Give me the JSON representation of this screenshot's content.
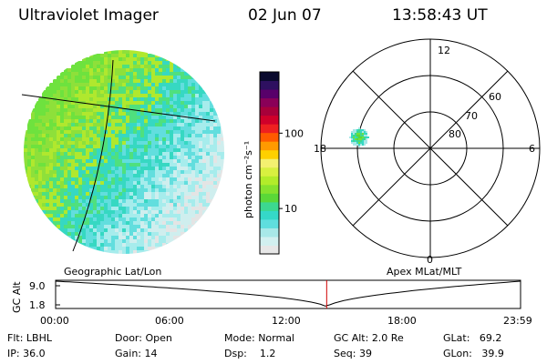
{
  "header": {
    "title": "Ultraviolet Imager",
    "date": "02 Jun 07",
    "time": "13:58:43 UT"
  },
  "colorbar": {
    "unit_label": "photon cm⁻²s⁻¹",
    "ticks": [
      {
        "label": "100",
        "value": 100
      },
      {
        "label": "10",
        "value": 10
      }
    ],
    "colors": [
      "#e7e7e7",
      "#d2f0f0",
      "#a8e8e8",
      "#5fdede",
      "#35d8c8",
      "#3cd890",
      "#5ad838",
      "#86e22e",
      "#b2ec2a",
      "#d8f040",
      "#f4f070",
      "#ffd000",
      "#ff9a00",
      "#ff5a00",
      "#ee2020",
      "#d0002a",
      "#a8003a",
      "#8a0058",
      "#58006a",
      "#2e1060",
      "#0a0a2e"
    ]
  },
  "left_panel": {
    "projection_label": "Geographic Lat/Lon",
    "image_colors": [
      "#6ee23e",
      "#8ee03a",
      "#b0e82e",
      "#4fe07e",
      "#36d8c2",
      "#62dede",
      "#a6ecec",
      "#cfeeee",
      "#e4e4e4"
    ]
  },
  "right_panel": {
    "projection_label": "Apex MLat/MLT",
    "mlt_labels": [
      "12",
      "18",
      "6",
      "0"
    ],
    "mlat_labels": [
      "60",
      "70",
      "80"
    ]
  },
  "timeline": {
    "ylabel": "GC Alt",
    "y_ticks": [
      "9.0",
      "1.8"
    ],
    "x_ticks": [
      "00:00",
      "06:00",
      "12:00",
      "18:00",
      "23:59"
    ],
    "current_time_fraction": 0.583
  },
  "info": {
    "flt": {
      "label": "Flt:",
      "value": "LBHL"
    },
    "ip": {
      "label": "IP:",
      "value": "36.0"
    },
    "door": {
      "label": "Door:",
      "value": "Open"
    },
    "gain": {
      "label": "Gain:",
      "value": "14"
    },
    "mode": {
      "label": "Mode:",
      "value": "Normal"
    },
    "dsp": {
      "label": "Dsp:",
      "value": "1.2"
    },
    "gcalt": {
      "label": "GC Alt:",
      "value": "2.0 Re"
    },
    "seq": {
      "label": "Seq:",
      "value": "39"
    },
    "glat": {
      "label": "GLat:",
      "value": "69.2"
    },
    "glon": {
      "label": "GLon:",
      "value": "39.9"
    }
  }
}
